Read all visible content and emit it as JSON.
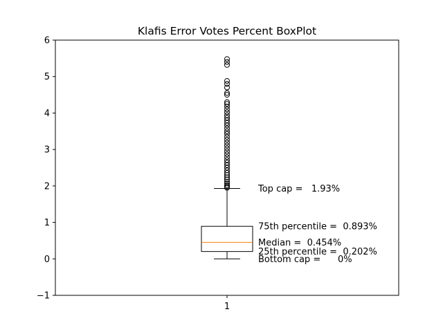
{
  "chart_data": {
    "type": "boxplot",
    "title": "Klafis Error Votes Percent BoxPlot",
    "xlabel": "",
    "ylabel": "",
    "ylim": [
      -1,
      6
    ],
    "y_ticks": [
      "−1",
      "0",
      "1",
      "2",
      "3",
      "4",
      "5",
      "6"
    ],
    "y_tick_values": [
      -1,
      0,
      1,
      2,
      3,
      4,
      5,
      6
    ],
    "x_ticks": [
      "1"
    ],
    "grid": false,
    "boxes": [
      {
        "label": "1",
        "whisker_low": 0,
        "q1": 0.202,
        "median": 0.454,
        "q3": 0.893,
        "whisker_high": 1.93,
        "outliers": [
          1.95,
          1.98,
          2.02,
          2.07,
          2.12,
          2.18,
          2.24,
          2.3,
          2.36,
          2.43,
          2.5,
          2.57,
          2.64,
          2.71,
          2.79,
          2.87,
          2.95,
          3.03,
          3.11,
          3.19,
          3.27,
          3.35,
          3.43,
          3.5,
          3.58,
          3.66,
          3.73,
          3.8,
          3.87,
          3.94,
          4.02,
          4.1,
          4.18,
          4.25,
          4.3,
          4.5,
          4.55,
          4.7,
          4.8,
          4.88,
          5.32,
          5.4,
          5.48
        ]
      }
    ],
    "annotations": [
      {
        "text": "Top cap =   1.93%",
        "value": 1.93
      },
      {
        "text": "75th percentile =  0.893%",
        "value": 0.893
      },
      {
        "text": "Median =  0.454%",
        "value": 0.454
      },
      {
        "text": "25th percentile =  0.202%",
        "value": 0.202
      },
      {
        "text": "Bottom cap =      0%",
        "value": 0
      }
    ],
    "colors": {
      "box": "#000000",
      "median": "#ff7f0e",
      "whisker": "#000000",
      "outlier": "#000000"
    }
  }
}
